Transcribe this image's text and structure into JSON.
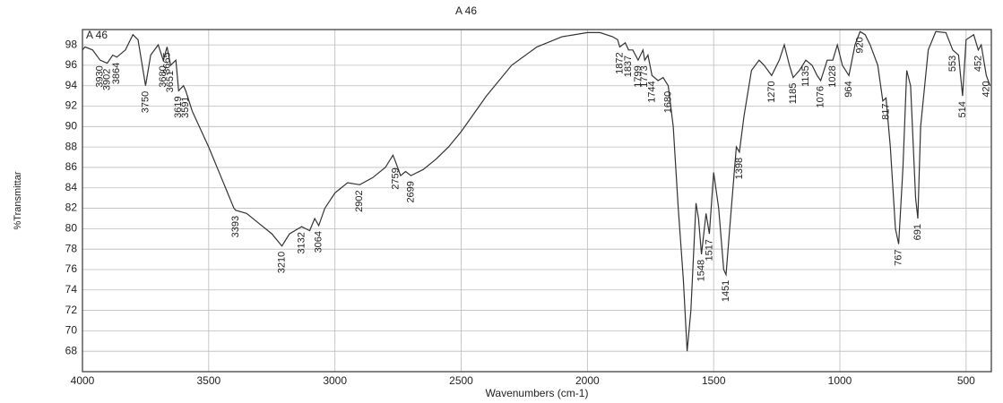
{
  "chart_data": {
    "type": "line",
    "title": "A 46",
    "plot_label": "A 46",
    "x_label": "Wavenumbers (cm-1)",
    "y_label": "%Transmittar",
    "color": "#333333",
    "grid": true,
    "xlim": [
      4000,
      400
    ],
    "ylim": [
      66,
      99.5
    ],
    "xticks": [
      4000,
      3500,
      3000,
      2500,
      2000,
      1500,
      1000,
      500
    ],
    "yticks": [
      68,
      70,
      72,
      74,
      76,
      78,
      80,
      82,
      84,
      86,
      88,
      90,
      92,
      94,
      96,
      98
    ],
    "x": [
      4000,
      3990,
      3960,
      3930,
      3902,
      3880,
      3864,
      3830,
      3800,
      3780,
      3750,
      3730,
      3700,
      3680,
      3665,
      3651,
      3630,
      3619,
      3600,
      3591,
      3565,
      3500,
      3450,
      3400,
      3393,
      3350,
      3300,
      3250,
      3210,
      3180,
      3132,
      3100,
      3080,
      3064,
      3040,
      3000,
      2950,
      2902,
      2850,
      2800,
      2770,
      2759,
      2740,
      2720,
      2699,
      2650,
      2600,
      2550,
      2500,
      2400,
      2300,
      2200,
      2100,
      2000,
      1950,
      1900,
      1880,
      1872,
      1850,
      1837,
      1820,
      1799,
      1780,
      1773,
      1760,
      1744,
      1720,
      1700,
      1680,
      1660,
      1640,
      1620,
      1605,
      1590,
      1570,
      1560,
      1548,
      1530,
      1517,
      1500,
      1480,
      1460,
      1451,
      1430,
      1410,
      1398,
      1380,
      1350,
      1320,
      1300,
      1270,
      1240,
      1220,
      1200,
      1185,
      1160,
      1135,
      1110,
      1090,
      1076,
      1050,
      1028,
      1010,
      990,
      964,
      940,
      920,
      900,
      880,
      850,
      830,
      817,
      800,
      780,
      767,
      750,
      735,
      720,
      700,
      691,
      680,
      650,
      620,
      580,
      553,
      530,
      514,
      500,
      470,
      452,
      440,
      420,
      405
    ],
    "values": [
      97.5,
      97.8,
      97.5,
      96.5,
      96.2,
      97,
      96.8,
      97.5,
      99,
      98.5,
      94,
      97,
      98,
      96.5,
      97.8,
      96,
      96.5,
      93.5,
      94,
      93.5,
      91.5,
      88,
      85,
      82,
      81.8,
      81.5,
      80.5,
      79.5,
      78.3,
      79.5,
      80.2,
      79.8,
      81,
      80.3,
      82,
      83.5,
      84.5,
      84.3,
      85,
      86,
      87.2,
      86.5,
      85.2,
      85.6,
      85.2,
      85.8,
      86.8,
      88,
      89.5,
      93,
      96,
      97.8,
      98.8,
      99.2,
      99.2,
      98.8,
      98.5,
      97.8,
      98.2,
      97.5,
      97.5,
      96.5,
      97.5,
      96.5,
      97,
      95,
      94.5,
      94.8,
      94,
      90,
      82,
      75,
      68,
      72,
      82.5,
      81,
      77.5,
      81.5,
      79.5,
      85.5,
      82,
      76,
      75.5,
      82,
      88,
      87.5,
      91,
      95.5,
      96.5,
      96,
      95,
      96.5,
      98,
      96,
      94.8,
      95.5,
      96.5,
      96,
      95,
      94.5,
      96.5,
      96.5,
      98,
      96,
      95,
      98,
      99.3,
      99,
      98,
      96,
      92.5,
      92.8,
      88,
      80,
      78.5,
      86,
      95.5,
      94,
      83,
      81,
      90,
      97.5,
      99.3,
      99.2,
      97.5,
      97,
      93,
      98.5,
      99,
      97.5,
      98,
      95,
      94
    ],
    "peaks": [
      3930,
      3902,
      3864,
      3750,
      3680,
      3665,
      3651,
      3619,
      3591,
      3393,
      3210,
      3132,
      3064,
      2902,
      2759,
      2699,
      1872,
      1837,
      1799,
      1773,
      1744,
      1680,
      1548,
      1517,
      1451,
      1398,
      1270,
      1185,
      1135,
      1076,
      1028,
      964,
      920,
      817,
      767,
      691,
      553,
      514,
      452,
      420
    ]
  }
}
